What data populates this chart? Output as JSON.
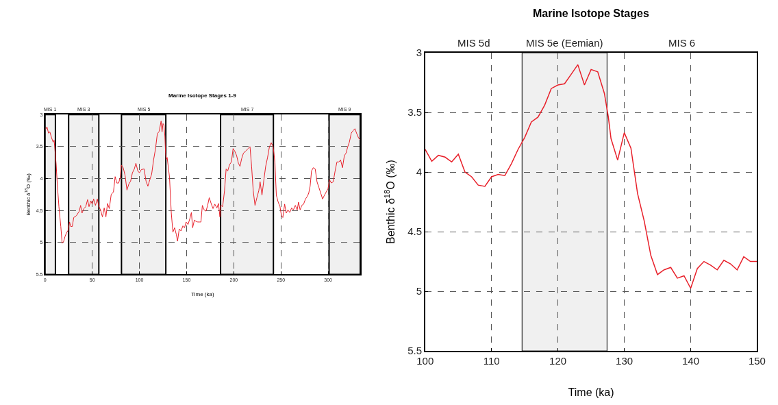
{
  "chart_data": [
    {
      "type": "line",
      "title": "Marine Isotope Stages 1-9",
      "xlabel": "Time (ka)",
      "ylabel": "Benthic δ$^{18}$O (‰)",
      "xlim": [
        0,
        334
      ],
      "xticks": [
        0,
        50,
        100,
        150,
        200,
        250,
        300
      ],
      "ylim": [
        5.5,
        3
      ],
      "yticks": [
        3,
        3.5,
        4,
        4.5,
        5,
        5.5
      ],
      "grid": true,
      "bands": [
        {
          "axis": "x",
          "from": 0,
          "to": 11,
          "label": "MIS 1",
          "color": "#f0f0f0"
        },
        {
          "axis": "x",
          "from": 25,
          "to": 57,
          "label": "MIS 3",
          "color": "#f0f0f0"
        },
        {
          "axis": "x",
          "from": 81,
          "to": 128,
          "label": "MIS 5",
          "color": "#f0f0f0"
        },
        {
          "axis": "x",
          "from": 186,
          "to": 242,
          "label": "MIS 7",
          "color": "#f0f0f0"
        },
        {
          "axis": "x",
          "from": 301,
          "to": 334,
          "label": "MIS 9",
          "color": "#f0f0f0"
        }
      ],
      "series": [
        {
          "color": "#e8202a",
          "x": [
            0.7,
            2,
            3.7,
            5.1,
            6.9,
            8.6,
            9.6,
            10.5,
            11.8,
            13,
            14.7,
            16.7,
            18.1,
            19.6,
            21.1,
            23,
            24.5,
            26,
            27.2,
            28.9,
            30.4,
            33.3,
            36.3,
            37.7,
            39.2,
            41.2,
            43.1,
            45.1,
            46.6,
            48.5,
            50,
            51.5,
            53.4,
            55.4,
            57.1,
            58.8,
            60.8,
            62.7,
            64.5,
            66.2,
            68.1,
            70.1,
            72.5,
            74.3,
            76,
            78,
            79.7,
            80.9,
            82.8,
            84.8,
            86.8,
            88.7,
            90.7,
            92.6,
            94.6,
            96.3,
            98.3,
            100,
            102,
            105,
            107,
            109,
            111,
            113,
            115,
            117,
            119,
            121,
            123,
            124,
            125,
            126,
            127,
            127.7,
            128.5,
            129.4,
            131.9,
            133.8,
            135.5,
            137.3,
            139.2,
            140.4,
            142.2,
            144.1,
            146.1,
            147.8,
            149.5,
            151.5,
            153.4,
            155.1,
            156.4,
            158.3,
            160,
            161.8,
            163.7,
            165.2,
            166.7,
            168.6,
            170.6,
            172.3,
            174,
            176,
            178,
            179.9,
            182.1,
            183.8,
            185.3,
            186.3,
            188.2,
            190.2,
            191.9,
            193.6,
            195.6,
            197.5,
            199.3,
            201,
            203,
            204.9,
            206.6,
            208.3,
            210.3,
            212.7,
            215.2,
            217.2,
            218.9,
            220.6,
            222.5,
            224.5,
            226.5,
            227.9,
            229.9,
            231.9,
            233.8,
            235.8,
            237.7,
            239.7,
            241.7,
            243.6,
            245.1,
            247.1,
            249,
            250.5,
            252,
            253.9,
            255.6,
            257.4,
            259.3,
            261.3,
            263.2,
            265.2,
            267.2,
            268.6,
            270.3,
            272.1,
            274,
            276,
            277.9,
            279.4,
            280.9,
            282.4,
            284.3,
            286.3,
            288.2,
            290.2,
            292.2,
            294.1,
            296.1,
            298,
            299.8,
            301.5,
            303.4,
            305.4,
            307.4,
            309.3,
            311.3,
            313.2,
            315.2,
            317.2,
            319.1,
            320.6,
            322.5,
            324.5,
            326.5,
            328.4,
            330.4,
            332.4,
            333.9
          ],
          "values": [
            3.23,
            3.19,
            3.29,
            3.27,
            3.36,
            3.43,
            3.4,
            3.55,
            3.78,
            4.09,
            4.44,
            4.75,
            5.01,
            4.99,
            4.91,
            4.84,
            4.81,
            4.68,
            4.75,
            4.75,
            4.61,
            4.58,
            4.51,
            4.42,
            4.54,
            4.47,
            4.44,
            4.33,
            4.44,
            4.35,
            4.4,
            4.32,
            4.42,
            4.32,
            4.44,
            4.49,
            4.6,
            4.46,
            4.6,
            4.39,
            4.47,
            4.25,
            4.21,
            3.97,
            4.07,
            4.07,
            3.98,
            3.79,
            3.83,
            3.95,
            4.18,
            4.09,
            4.04,
            3.91,
            3.85,
            3.76,
            3.88,
            3.91,
            3.86,
            3.85,
            4.04,
            4.12,
            4.02,
            3.93,
            3.71,
            3.54,
            3.3,
            3.26,
            3.1,
            3.27,
            3.14,
            3.16,
            3.34,
            3.6,
            3.7,
            3.67,
            3.98,
            4.54,
            4.84,
            4.77,
            4.88,
            4.98,
            4.79,
            4.82,
            4.74,
            4.77,
            4.68,
            4.72,
            4.63,
            4.53,
            4.77,
            4.65,
            4.67,
            4.68,
            4.68,
            4.68,
            4.42,
            4.49,
            4.51,
            4.42,
            4.3,
            4.39,
            4.47,
            4.4,
            4.46,
            4.39,
            4.6,
            4.42,
            4.44,
            4.19,
            3.85,
            3.88,
            3.78,
            3.74,
            3.53,
            3.57,
            3.64,
            3.76,
            3.81,
            3.69,
            3.6,
            3.57,
            3.53,
            3.5,
            3.81,
            4.19,
            4.42,
            4.3,
            4.19,
            4.05,
            4.26,
            4.02,
            3.81,
            3.67,
            3.51,
            3.44,
            3.5,
            3.74,
            4.26,
            4.37,
            4.44,
            4.58,
            4.61,
            4.4,
            4.54,
            4.49,
            4.53,
            4.46,
            4.49,
            4.42,
            4.49,
            4.37,
            4.49,
            4.42,
            4.4,
            4.32,
            4.28,
            4.23,
            4.12,
            3.88,
            3.83,
            3.85,
            4.05,
            4.14,
            4.23,
            4.32,
            4.26,
            4.21,
            4.16,
            4.02,
            4.07,
            4.05,
            3.88,
            3.74,
            3.74,
            3.71,
            3.83,
            3.64,
            3.6,
            3.51,
            3.43,
            3.29,
            3.25,
            3.22,
            3.3,
            3.37,
            3.39
          ]
        }
      ]
    },
    {
      "type": "line",
      "title": "Marine Isotope Stages",
      "xlabel": "Time (ka)",
      "ylabel": "Benthic δ$^{18}$O (‰)",
      "xlim": [
        100,
        150
      ],
      "xticks": [
        100,
        110,
        120,
        130,
        140,
        150
      ],
      "ylim": [
        5.5,
        3
      ],
      "yticks": [
        3,
        3.5,
        4,
        4.5,
        5,
        5.5
      ],
      "grid": true,
      "annotations": [
        "MIS 5d",
        "MIS 6"
      ],
      "bands": [
        {
          "axis": "x",
          "from": 114.6,
          "to": 127.4,
          "label": "MIS 5e (Eemian)",
          "color": "#f0f0f0"
        }
      ],
      "series": [
        {
          "color": "#e8202a",
          "x": [
            100,
            101,
            102,
            103,
            104,
            105,
            106,
            107,
            108,
            109,
            110,
            111,
            112,
            113,
            114,
            115,
            116,
            117,
            118,
            119,
            120,
            121,
            122,
            123,
            124,
            125,
            126,
            127,
            127.6,
            128,
            129,
            130,
            131,
            132,
            133,
            134,
            135,
            136,
            137,
            138,
            139,
            140,
            141,
            142,
            143,
            144,
            145,
            146,
            147,
            148,
            149,
            150
          ],
          "values": [
            3.81,
            3.91,
            3.86,
            3.875,
            3.915,
            3.85,
            4.0,
            4.04,
            4.11,
            4.12,
            4.04,
            4.02,
            4.03,
            3.93,
            3.81,
            3.71,
            3.58,
            3.54,
            3.44,
            3.3,
            3.27,
            3.26,
            3.18,
            3.1,
            3.27,
            3.14,
            3.16,
            3.34,
            3.54,
            3.72,
            3.9,
            3.67,
            3.8,
            4.18,
            4.41,
            4.7,
            4.86,
            4.82,
            4.8,
            4.89,
            4.87,
            4.975,
            4.81,
            4.75,
            4.78,
            4.82,
            4.74,
            4.77,
            4.82,
            4.71,
            4.75,
            4.75
          ]
        }
      ]
    }
  ]
}
